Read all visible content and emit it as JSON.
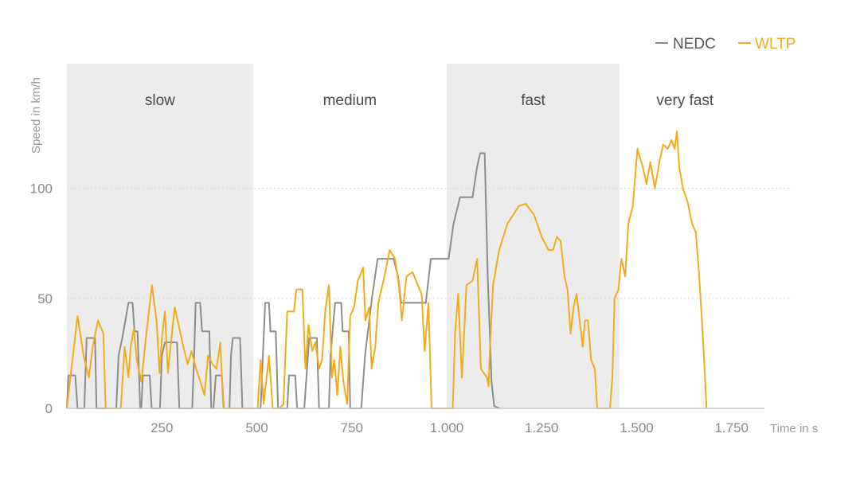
{
  "chart_data": {
    "type": "line",
    "title": "",
    "xlabel": "Time in s",
    "ylabel": "Speed in km/h",
    "xlim": [
      0,
      1900
    ],
    "ylim": [
      0,
      150
    ],
    "xticks": [
      {
        "value": 250,
        "label": "250"
      },
      {
        "value": 500,
        "label": "500"
      },
      {
        "value": 750,
        "label": "750"
      },
      {
        "value": 1000,
        "label": "1.000"
      },
      {
        "value": 1250,
        "label": "1.250"
      },
      {
        "value": 1500,
        "label": "1.500"
      },
      {
        "value": 1750,
        "label": "1.750"
      }
    ],
    "yticks": [
      {
        "value": 0,
        "label": "0"
      },
      {
        "value": 50,
        "label": "50"
      },
      {
        "value": 100,
        "label": "100"
      }
    ],
    "grid": "horizontal dotted",
    "legend_position": "top-right",
    "phases": [
      {
        "label": "slow",
        "start": 0,
        "end": 490,
        "shaded": true
      },
      {
        "label": "medium",
        "start": 490,
        "end": 1000,
        "shaded": false
      },
      {
        "label": "fast",
        "start": 1000,
        "end": 1455,
        "shaded": true
      },
      {
        "label": "very fast",
        "start": 1455,
        "end": 1800,
        "shaded": false
      }
    ],
    "series": [
      {
        "name": "NEDC",
        "color": "#8c8c8c",
        "points": [
          [
            0,
            0
          ],
          [
            4,
            15
          ],
          [
            22,
            15
          ],
          [
            28,
            0
          ],
          [
            46,
            0
          ],
          [
            52,
            32
          ],
          [
            74,
            32
          ],
          [
            78,
            0
          ],
          [
            130,
            0
          ],
          [
            136,
            24
          ],
          [
            146,
            32
          ],
          [
            162,
            48
          ],
          [
            173,
            48
          ],
          [
            178,
            35
          ],
          [
            186,
            35
          ],
          [
            193,
            0
          ],
          [
            196,
            0
          ],
          [
            200,
            15
          ],
          [
            218,
            15
          ],
          [
            223,
            0
          ],
          [
            245,
            0
          ],
          [
            250,
            24
          ],
          [
            258,
            30
          ],
          [
            290,
            30
          ],
          [
            296,
            0
          ],
          [
            330,
            0
          ],
          [
            335,
            24
          ],
          [
            339,
            48
          ],
          [
            351,
            48
          ],
          [
            356,
            35
          ],
          [
            375,
            35
          ],
          [
            380,
            0
          ],
          [
            386,
            0
          ],
          [
            392,
            15
          ],
          [
            408,
            15
          ],
          [
            413,
            0
          ],
          [
            428,
            0
          ],
          [
            432,
            24
          ],
          [
            437,
            32
          ],
          [
            456,
            32
          ],
          [
            462,
            0
          ],
          [
            510,
            0
          ],
          [
            516,
            24
          ],
          [
            522,
            48
          ],
          [
            532,
            48
          ],
          [
            536,
            35
          ],
          [
            550,
            35
          ],
          [
            556,
            0
          ],
          [
            580,
            0
          ],
          [
            585,
            15
          ],
          [
            601,
            15
          ],
          [
            606,
            0
          ],
          [
            625,
            0
          ],
          [
            631,
            15
          ],
          [
            638,
            32
          ],
          [
            658,
            32
          ],
          [
            664,
            0
          ],
          [
            690,
            0
          ],
          [
            694,
            24
          ],
          [
            706,
            48
          ],
          [
            722,
            48
          ],
          [
            726,
            35
          ],
          [
            742,
            35
          ],
          [
            746,
            0
          ],
          [
            752,
            0
          ],
          [
            756,
            0
          ],
          [
            770,
            0
          ],
          [
            775,
            0
          ],
          [
            785,
            24
          ],
          [
            803,
            50
          ],
          [
            818,
            68
          ],
          [
            860,
            68
          ],
          [
            872,
            60
          ],
          [
            880,
            48
          ],
          [
            945,
            48
          ],
          [
            958,
            68
          ],
          [
            1005,
            68
          ],
          [
            1018,
            84
          ],
          [
            1035,
            96
          ],
          [
            1068,
            96
          ],
          [
            1080,
            110
          ],
          [
            1088,
            116
          ],
          [
            1100,
            116
          ],
          [
            1108,
            60
          ],
          [
            1118,
            12
          ],
          [
            1125,
            1
          ],
          [
            1140,
            0
          ]
        ]
      },
      {
        "name": "WLTP",
        "color": "#f2ab1b",
        "points": [
          [
            0,
            0
          ],
          [
            12,
            18
          ],
          [
            28,
            42
          ],
          [
            44,
            24
          ],
          [
            58,
            14
          ],
          [
            68,
            28
          ],
          [
            82,
            40
          ],
          [
            96,
            34
          ],
          [
            102,
            0
          ],
          [
            142,
            0
          ],
          [
            152,
            28
          ],
          [
            162,
            14
          ],
          [
            168,
            28
          ],
          [
            176,
            36
          ],
          [
            184,
            22
          ],
          [
            196,
            12
          ],
          [
            208,
            32
          ],
          [
            224,
            56
          ],
          [
            236,
            40
          ],
          [
            244,
            16
          ],
          [
            250,
            32
          ],
          [
            258,
            44
          ],
          [
            266,
            16
          ],
          [
            274,
            30
          ],
          [
            284,
            46
          ],
          [
            304,
            30
          ],
          [
            318,
            20
          ],
          [
            328,
            26
          ],
          [
            340,
            18
          ],
          [
            352,
            12
          ],
          [
            362,
            6
          ],
          [
            372,
            24
          ],
          [
            384,
            20
          ],
          [
            394,
            18
          ],
          [
            404,
            30
          ],
          [
            412,
            0
          ],
          [
            450,
            0
          ],
          [
            502,
            0
          ],
          [
            510,
            22
          ],
          [
            518,
            2
          ],
          [
            532,
            24
          ],
          [
            542,
            0
          ],
          [
            560,
            0
          ],
          [
            570,
            2
          ],
          [
            580,
            44
          ],
          [
            598,
            44
          ],
          [
            604,
            54
          ],
          [
            620,
            54
          ],
          [
            628,
            18
          ],
          [
            636,
            38
          ],
          [
            646,
            26
          ],
          [
            654,
            30
          ],
          [
            664,
            18
          ],
          [
            672,
            22
          ],
          [
            680,
            44
          ],
          [
            690,
            56
          ],
          [
            698,
            14
          ],
          [
            704,
            22
          ],
          [
            712,
            6
          ],
          [
            720,
            28
          ],
          [
            728,
            12
          ],
          [
            738,
            2
          ],
          [
            746,
            42
          ],
          [
            756,
            46
          ],
          [
            766,
            58
          ],
          [
            780,
            64
          ],
          [
            786,
            40
          ],
          [
            796,
            46
          ],
          [
            802,
            18
          ],
          [
            812,
            28
          ],
          [
            820,
            48
          ],
          [
            836,
            60
          ],
          [
            850,
            72
          ],
          [
            864,
            68
          ],
          [
            874,
            56
          ],
          [
            882,
            40
          ],
          [
            894,
            60
          ],
          [
            910,
            62
          ],
          [
            924,
            56
          ],
          [
            934,
            52
          ],
          [
            942,
            26
          ],
          [
            952,
            48
          ],
          [
            960,
            0
          ],
          [
            1000,
            0
          ],
          [
            1016,
            0
          ],
          [
            1022,
            34
          ],
          [
            1030,
            52
          ],
          [
            1040,
            14
          ],
          [
            1052,
            56
          ],
          [
            1068,
            58
          ],
          [
            1080,
            68
          ],
          [
            1090,
            18
          ],
          [
            1106,
            14
          ],
          [
            1110,
            10
          ],
          [
            1114,
            28
          ],
          [
            1122,
            56
          ],
          [
            1138,
            72
          ],
          [
            1160,
            84
          ],
          [
            1190,
            92
          ],
          [
            1208,
            93
          ],
          [
            1230,
            88
          ],
          [
            1250,
            78
          ],
          [
            1268,
            72
          ],
          [
            1280,
            72
          ],
          [
            1290,
            78
          ],
          [
            1300,
            76
          ],
          [
            1310,
            60
          ],
          [
            1318,
            54
          ],
          [
            1326,
            34
          ],
          [
            1334,
            46
          ],
          [
            1342,
            52
          ],
          [
            1350,
            40
          ],
          [
            1358,
            28
          ],
          [
            1364,
            40
          ],
          [
            1372,
            40
          ],
          [
            1380,
            22
          ],
          [
            1390,
            18
          ],
          [
            1396,
            0
          ],
          [
            1420,
            0
          ],
          [
            1430,
            0
          ],
          [
            1436,
            14
          ],
          [
            1442,
            50
          ],
          [
            1452,
            54
          ],
          [
            1460,
            68
          ],
          [
            1470,
            60
          ],
          [
            1478,
            84
          ],
          [
            1490,
            92
          ],
          [
            1502,
            118
          ],
          [
            1516,
            110
          ],
          [
            1526,
            102
          ],
          [
            1536,
            112
          ],
          [
            1548,
            100
          ],
          [
            1560,
            112
          ],
          [
            1570,
            120
          ],
          [
            1582,
            118
          ],
          [
            1592,
            122
          ],
          [
            1600,
            118
          ],
          [
            1606,
            126
          ],
          [
            1612,
            110
          ],
          [
            1622,
            100
          ],
          [
            1634,
            94
          ],
          [
            1646,
            84
          ],
          [
            1656,
            80
          ],
          [
            1664,
            62
          ],
          [
            1674,
            34
          ],
          [
            1684,
            0
          ]
        ]
      }
    ]
  }
}
